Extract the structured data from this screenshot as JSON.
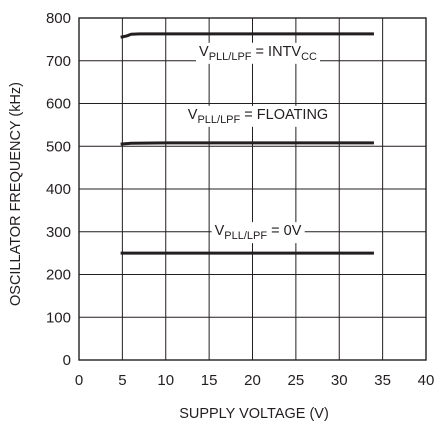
{
  "chart_data": {
    "type": "line",
    "xlabel": "SUPPLY VOLTAGE (V)",
    "ylabel": "OSCILLATOR FREQUENCY (kHz)",
    "xlim": [
      0,
      40
    ],
    "ylim": [
      0,
      800
    ],
    "xticks": [
      0,
      5,
      10,
      15,
      20,
      25,
      30,
      35,
      40
    ],
    "yticks": [
      0,
      100,
      200,
      300,
      400,
      500,
      600,
      700,
      800
    ],
    "grid": true,
    "series": [
      {
        "key": "intvcc",
        "label_main": "V",
        "label_sub": "PLL/LPF",
        "label_rest": " = INTV",
        "label_sub2": "CC",
        "x": [
          4.8,
          5.5,
          6.0,
          7.0,
          10,
          20,
          34
        ],
        "y": [
          755,
          758,
          762,
          763,
          763,
          763,
          763
        ]
      },
      {
        "key": "floating",
        "label_main": "V",
        "label_sub": "PLL/LPF",
        "label_rest": " = FLOATING",
        "label_sub2": "",
        "x": [
          4.8,
          6,
          10,
          20,
          34
        ],
        "y": [
          505,
          507,
          508,
          508,
          508
        ]
      },
      {
        "key": "zero",
        "label_main": "V",
        "label_sub": "PLL/LPF",
        "label_rest": " = 0V",
        "label_sub2": "",
        "x": [
          4.8,
          10,
          20,
          34
        ],
        "y": [
          250,
          250,
          250,
          250
        ]
      }
    ]
  }
}
